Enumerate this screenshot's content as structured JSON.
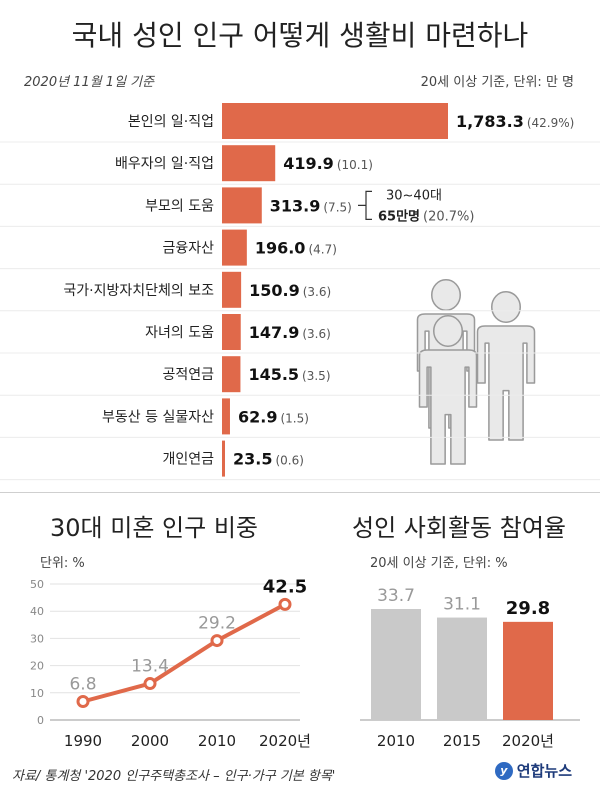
{
  "title": "국내 성인 인구 어떻게 생활비 마련하나",
  "meta": {
    "date": "2020년 11월 1일 기준",
    "unit": "20세 이상 기준, 단위: 만 명"
  },
  "colors": {
    "accent": "#e0694a",
    "bar_gray": "#c9c9c9",
    "line": "#e0694a",
    "person": "#d0d0d0"
  },
  "chart_data": [
    {
      "type": "bar",
      "title": "국내 성인 인구 어떻게 생활비 마련하나",
      "categories": [
        "본인의 일·직업",
        "배우자의 일·직업",
        "부모의 도움",
        "금융자산",
        "국가·지방자치단체의 보조",
        "자녀의 도움",
        "공적연금",
        "부동산 등 실물자산",
        "개인연금"
      ],
      "values": [
        1783.3,
        419.9,
        313.9,
        196.0,
        150.9,
        147.9,
        145.5,
        62.9,
        23.5
      ],
      "value_labels": [
        "1,783.3",
        "419.9",
        "313.9",
        "196.0",
        "150.9",
        "147.9",
        "145.5",
        "62.9",
        "23.5"
      ],
      "pct_labels": [
        "(42.9%)",
        "(10.1)",
        "(7.5)",
        "(4.7)",
        "(3.6)",
        "(3.6)",
        "(3.5)",
        "(1.5)",
        "(0.6)"
      ],
      "annotation": {
        "line1": "30~40대",
        "line2_bold": "65만명",
        "line2_pct": "(20.7%)"
      }
    },
    {
      "type": "line",
      "title": "30대 미혼 인구 비중",
      "unit": "단위: %",
      "x": [
        "1990",
        "2000",
        "2010",
        "2020년"
      ],
      "y": [
        6.8,
        13.4,
        29.2,
        42.5
      ],
      "y_labels": [
        "6.8",
        "13.4",
        "29.2",
        "42.5"
      ],
      "ylim": [
        0,
        50
      ],
      "yticks": [
        "0",
        "10",
        "20",
        "30",
        "40",
        "50"
      ]
    },
    {
      "type": "bar",
      "title": "성인 사회활동 참여율",
      "unit": "20세 이상 기준, 단위: %",
      "categories": [
        "2010",
        "2015",
        "2020년"
      ],
      "values": [
        33.7,
        31.1,
        29.8
      ],
      "value_labels": [
        "33.7",
        "31.1",
        "29.8"
      ]
    }
  ],
  "footer": {
    "source": "자료/ 통계청 '2020 인구주택총조사 – 인구·가구 기본 항목'",
    "logo": "연합뉴스"
  }
}
